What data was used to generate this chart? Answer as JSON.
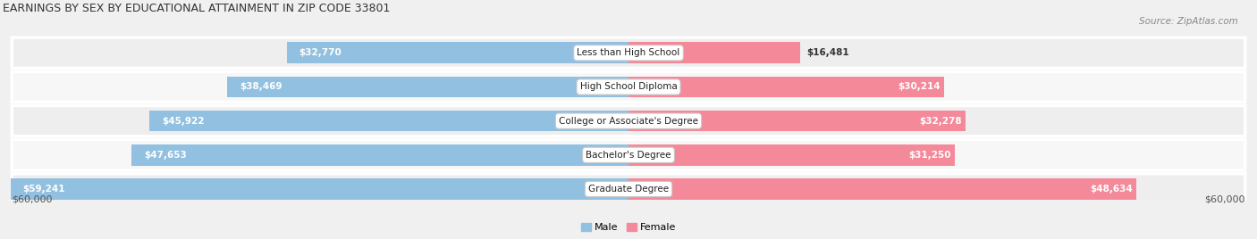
{
  "title": "EARNINGS BY SEX BY EDUCATIONAL ATTAINMENT IN ZIP CODE 33801",
  "source": "Source: ZipAtlas.com",
  "categories": [
    "Less than High School",
    "High School Diploma",
    "College or Associate's Degree",
    "Bachelor's Degree",
    "Graduate Degree"
  ],
  "male_values": [
    32770,
    38469,
    45922,
    47653,
    59241
  ],
  "female_values": [
    16481,
    30214,
    32278,
    31250,
    48634
  ],
  "male_color": "#92C0E0",
  "female_color": "#F4899A",
  "row_bg_even": "#EEEEEE",
  "row_bg_odd": "#F7F7F7",
  "row_separator": "#FFFFFF",
  "fig_bg": "#F0F0F0",
  "max_value": 60000,
  "xlabel_left": "$60,000",
  "xlabel_right": "$60,000",
  "title_fontsize": 9,
  "source_fontsize": 7.5,
  "label_fontsize": 7.5,
  "cat_fontsize": 7.5,
  "legend_fontsize": 8
}
